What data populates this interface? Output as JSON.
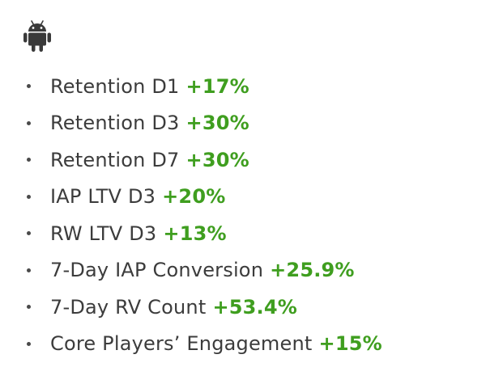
{
  "header": {
    "platform_icon": "android-icon",
    "icon_color": "#3a3a3a"
  },
  "accent_color": "#3f9e1f",
  "metrics": [
    {
      "label": "Retention D1",
      "change": "+17%"
    },
    {
      "label": "Retention D3",
      "change": "+30%"
    },
    {
      "label": "Retention D7",
      "change": "+30%"
    },
    {
      "label": "IAP LTV D3",
      "change": "+20%"
    },
    {
      "label": "RW LTV D3",
      "change": "+13%"
    },
    {
      "label": "7-Day IAP Conversion",
      "change": "+25.9%"
    },
    {
      "label": "7-Day RV Count",
      "change": "+53.4%"
    },
    {
      "label": "Core Players’ Engagement",
      "change": "+15%"
    }
  ]
}
